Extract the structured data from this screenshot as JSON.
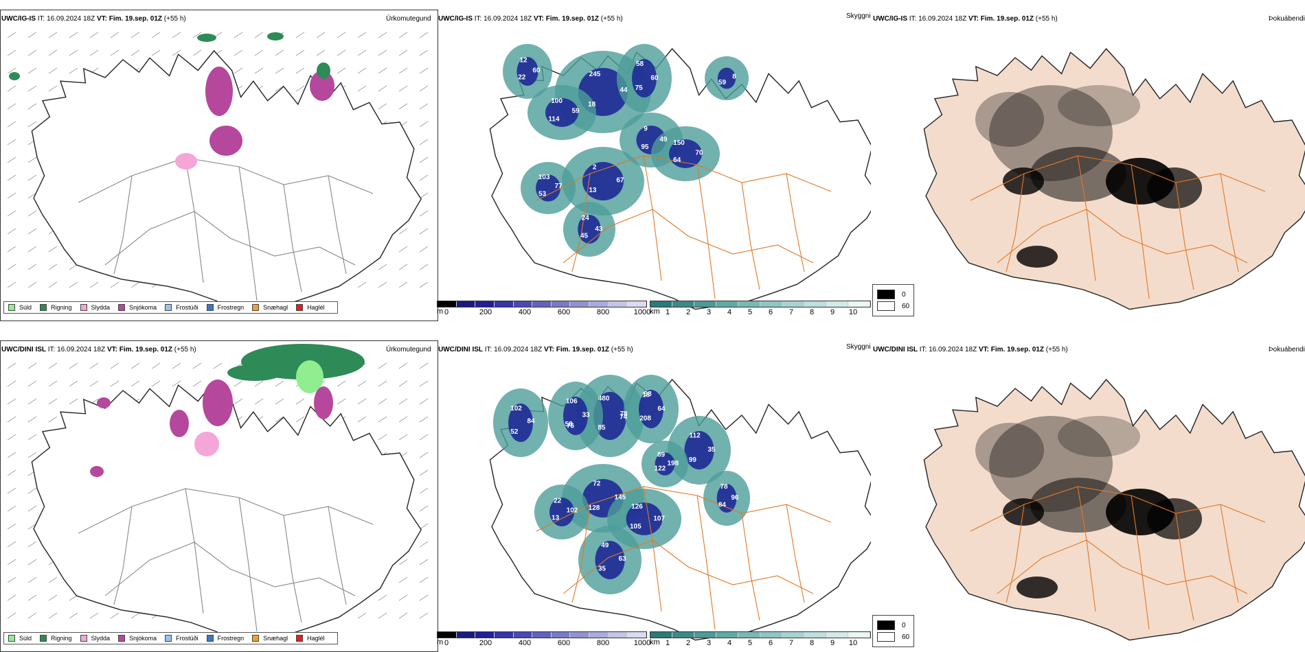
{
  "rows": [
    {
      "precip": {
        "model": "UWC/IG-IS",
        "it_label": "IT:",
        "it_value": "16.09.2024 18Z",
        "vt_label": "VT:",
        "vt_value": "Fim. 19.sep. 01Z",
        "lead": "(+55 h)",
        "category": "Úrkomutegund"
      },
      "cloud": {
        "model": "UWC/IG-IS",
        "it_label": "IT:",
        "it_value": "16.09.2024 18Z",
        "vt_label": "VT:",
        "vt_value": "Fim. 19.sep. 01Z",
        "lead": "(+55 h)",
        "category": "Skyggni",
        "labels": [
          "44",
          "95",
          "2",
          "77",
          "75",
          "150",
          "59",
          "45",
          "12",
          "8",
          "18",
          "9",
          "67",
          "53",
          "58",
          "70",
          "114",
          "24",
          "60",
          "59",
          "245",
          "49",
          "13",
          "103",
          "60",
          "64",
          "100",
          "43",
          "22"
        ]
      },
      "fog": {
        "model": "UWC/IG-IS",
        "it_label": "IT:",
        "it_value": "16.09.2024 18Z",
        "vt_label": "VT:",
        "vt_value": "Fim. 19.sep. 01Z",
        "lead": "(+55 h)",
        "category": "Þokuábendi"
      }
    },
    {
      "precip": {
        "model": "UWC/DINI ISL",
        "it_label": "IT:",
        "it_value": "16.09.2024 18Z",
        "vt_label": "VT:",
        "vt_value": "Fim. 19.sep. 01Z",
        "lead": "(+55 h)",
        "category": "Úrkomutegund"
      },
      "cloud": {
        "model": "UWC/DINI ISL",
        "it_label": "IT:",
        "it_value": "16.09.2024 18Z",
        "vt_label": "VT:",
        "vt_value": "Fim. 19.sep. 01Z",
        "lead": "(+55 h)",
        "category": "Skyggni",
        "labels": [
          "78",
          "76",
          "18",
          "84",
          "128",
          "126",
          "102",
          "99",
          "89",
          "63",
          "84",
          "480",
          "33",
          "208",
          "102",
          "145",
          "105",
          "22",
          "35",
          "122",
          "49",
          "96",
          "85",
          "106",
          "64",
          "52",
          "72",
          "107",
          "13",
          "112",
          "198",
          "35",
          "78",
          "74",
          "58",
          "98"
        ]
      },
      "fog": {
        "model": "UWC/DINI ISL",
        "it_label": "IT:",
        "it_value": "16.09.2024 18Z",
        "vt_label": "VT:",
        "vt_value": "Fim. 19.sep. 01Z",
        "lead": "(+55 h)",
        "category": "Þokuábendi"
      }
    }
  ],
  "precip_legend": [
    {
      "label": "Súld",
      "color": "#90ee90"
    },
    {
      "label": "Rigning",
      "color": "#2e8b57"
    },
    {
      "label": "Slydda",
      "color": "#f4a6d7"
    },
    {
      "label": "Snjókoma",
      "color": "#b5489c"
    },
    {
      "label": "Frostúði",
      "color": "#99c2ee"
    },
    {
      "label": "Frostregn",
      "color": "#3a78c2"
    },
    {
      "label": "Snæhagl",
      "color": "#f0a030"
    },
    {
      "label": "Haglél",
      "color": "#e02020"
    }
  ],
  "height_bar": {
    "unit": "m",
    "ticks": [
      "0",
      "200",
      "400",
      "600",
      "800",
      "1000"
    ],
    "colors": [
      "#000000",
      "#1a1a80",
      "#20209a",
      "#3535a8",
      "#4a4ab2",
      "#6262bc",
      "#7a7ac6",
      "#9292d0",
      "#aaaadc",
      "#c4c4e8",
      "#dadaf2"
    ]
  },
  "vis_bar": {
    "unit": "km",
    "ticks": [
      "1",
      "2",
      "3",
      "4",
      "5",
      "6",
      "7",
      "8",
      "9",
      "10"
    ],
    "colors": [
      "#2a7a78",
      "#3c8a88",
      "#4f9a97",
      "#62a9a6",
      "#78b8b5",
      "#8fc6c3",
      "#a6d3d0",
      "#bddfdd",
      "#d4eae9",
      "#eaf5f4"
    ]
  },
  "fog_box": {
    "items": [
      {
        "label": "0",
        "color": "#000000"
      },
      {
        "label": "60",
        "color": "#ffffff"
      }
    ]
  },
  "colors": {
    "coast": "#222222",
    "roads_grey": "#888888",
    "roads_orange": "#e07828",
    "fog_land": "#f3dccc",
    "cloud_dark": "#1e2a96",
    "cloud_teal": "#4e9e9a",
    "rain": "#2e8b57",
    "snow": "#b5489c",
    "sleet": "#f4a6d7",
    "drizzle": "#90ee90"
  }
}
